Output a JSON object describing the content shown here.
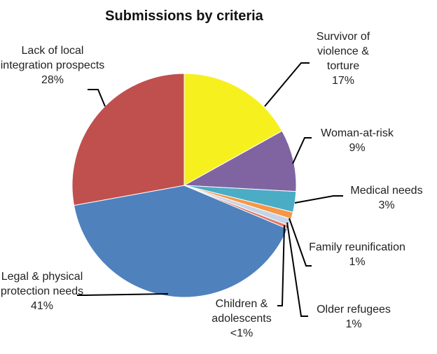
{
  "chart_data": {
    "type": "pie",
    "title": "Submissions by criteria",
    "categories": [
      "Survivor of violence & torture",
      "Woman-at-risk",
      "Medical needs",
      "Family reunification",
      "Older refugees",
      "Children & adolescents",
      "Legal & physical protection needs",
      "Lack of local integration prospects"
    ],
    "values": [
      17,
      9,
      3,
      1,
      1,
      0.5,
      41,
      28
    ],
    "value_labels": [
      "17%",
      "9%",
      "3%",
      "1%",
      "1%",
      "<1%",
      "41%",
      "28%"
    ],
    "colors": [
      "#f7f01f",
      "#8064a2",
      "#4bacc6",
      "#f79646",
      "#c6d4e8",
      "#e07a6a",
      "#4f81bd",
      "#c0504d"
    ]
  }
}
